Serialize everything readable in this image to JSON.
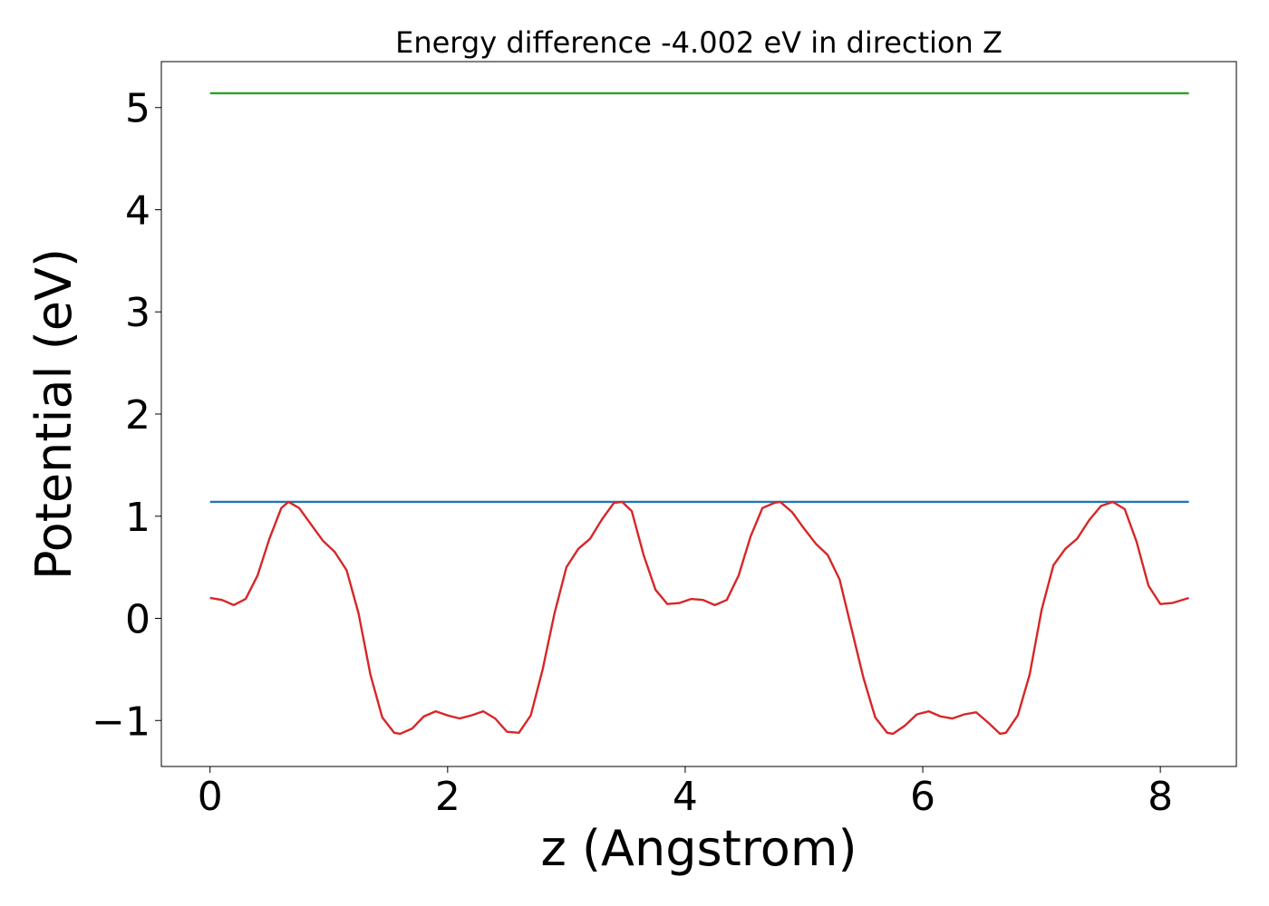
{
  "chart_data": {
    "type": "line",
    "title": "Energy difference -4.002 eV in direction Z",
    "xlabel": "z (Angstrom)",
    "ylabel": "Potential (eV)",
    "xlim": [
      -0.41,
      8.64
    ],
    "ylim": [
      -1.45,
      5.45
    ],
    "xticks": [
      0,
      2,
      4,
      6,
      8
    ],
    "xtick_labels": [
      "0",
      "2",
      "4",
      "6",
      "8"
    ],
    "yticks": [
      -1,
      0,
      1,
      2,
      3,
      4,
      5
    ],
    "ytick_labels": [
      "−1",
      "0",
      "1",
      "2",
      "3",
      "4",
      "5"
    ],
    "grid": false,
    "legend": "none",
    "series": [
      {
        "color": "#2ca02c",
        "x": [
          0,
          8.24
        ],
        "y": [
          5.14,
          5.14
        ]
      },
      {
        "color": "#1f77b4",
        "x": [
          0,
          8.24
        ],
        "y": [
          1.14,
          1.14
        ]
      },
      {
        "color": "#d62728",
        "x": [
          0.0,
          0.1,
          0.2,
          0.3,
          0.4,
          0.5,
          0.6,
          0.66,
          0.75,
          0.85,
          0.95,
          1.05,
          1.15,
          1.25,
          1.35,
          1.45,
          1.55,
          1.6,
          1.7,
          1.8,
          1.9,
          2.0,
          2.1,
          2.2,
          2.3,
          2.4,
          2.5,
          2.6,
          2.7,
          2.8,
          2.9,
          3.0,
          3.1,
          3.2,
          3.3,
          3.4,
          3.47,
          3.55,
          3.65,
          3.75,
          3.85,
          3.95,
          4.05,
          4.15,
          4.25,
          4.35,
          4.45,
          4.55,
          4.65,
          4.75,
          4.8,
          4.9,
          5.0,
          5.1,
          5.2,
          5.3,
          5.4,
          5.5,
          5.6,
          5.7,
          5.75,
          5.85,
          5.95,
          6.05,
          6.15,
          6.25,
          6.35,
          6.45,
          6.55,
          6.65,
          6.7,
          6.8,
          6.9,
          7.0,
          7.1,
          7.2,
          7.3,
          7.4,
          7.5,
          7.6,
          7.7,
          7.8,
          7.9,
          8.0,
          8.1,
          8.24
        ],
        "y": [
          0.2,
          0.18,
          0.13,
          0.19,
          0.42,
          0.78,
          1.08,
          1.14,
          1.08,
          0.92,
          0.76,
          0.65,
          0.47,
          0.05,
          -0.55,
          -0.97,
          -1.12,
          -1.13,
          -1.08,
          -0.96,
          -0.91,
          -0.95,
          -0.98,
          -0.95,
          -0.91,
          -0.98,
          -1.11,
          -1.12,
          -0.95,
          -0.5,
          0.05,
          0.5,
          0.68,
          0.78,
          0.97,
          1.13,
          1.14,
          1.05,
          0.62,
          0.28,
          0.14,
          0.15,
          0.19,
          0.18,
          0.13,
          0.18,
          0.42,
          0.8,
          1.08,
          1.13,
          1.14,
          1.04,
          0.88,
          0.73,
          0.62,
          0.38,
          -0.1,
          -0.58,
          -0.97,
          -1.12,
          -1.13,
          -1.05,
          -0.94,
          -0.91,
          -0.96,
          -0.98,
          -0.94,
          -0.92,
          -1.02,
          -1.13,
          -1.12,
          -0.95,
          -0.55,
          0.08,
          0.52,
          0.68,
          0.78,
          0.96,
          1.1,
          1.14,
          1.07,
          0.75,
          0.32,
          0.14,
          0.15,
          0.2
        ]
      }
    ]
  }
}
